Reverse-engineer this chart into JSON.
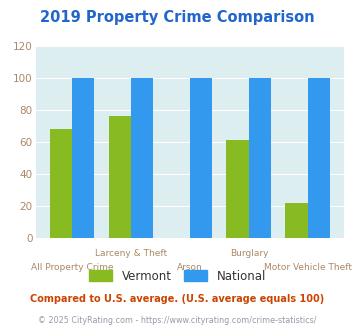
{
  "title": "2019 Property Crime Comparison",
  "title_color": "#2266cc",
  "categories": [
    "All Property Crime",
    "Larceny & Theft",
    "Arson",
    "Burglary",
    "Motor Vehicle Theft"
  ],
  "upper_labels": [
    "",
    "Larceny & Theft",
    "",
    "Burglary",
    ""
  ],
  "lower_labels": [
    "All Property Crime",
    "",
    "Arson",
    "",
    "Motor Vehicle Theft"
  ],
  "vermont_values": [
    68,
    76,
    0,
    61,
    22
  ],
  "national_values": [
    100,
    100,
    100,
    100,
    100
  ],
  "vermont_color": "#88bb22",
  "national_color": "#3399ee",
  "plot_bg": "#ddeef0",
  "ylim": [
    0,
    120
  ],
  "yticks": [
    0,
    20,
    40,
    60,
    80,
    100,
    120
  ],
  "legend_labels": [
    "Vermont",
    "National"
  ],
  "footnote1": "Compared to U.S. average. (U.S. average equals 100)",
  "footnote2": "© 2025 CityRating.com - https://www.cityrating.com/crime-statistics/",
  "footnote1_color": "#cc4400",
  "footnote2_color": "#9999aa",
  "tick_color": "#aa8866",
  "bar_width": 0.38
}
